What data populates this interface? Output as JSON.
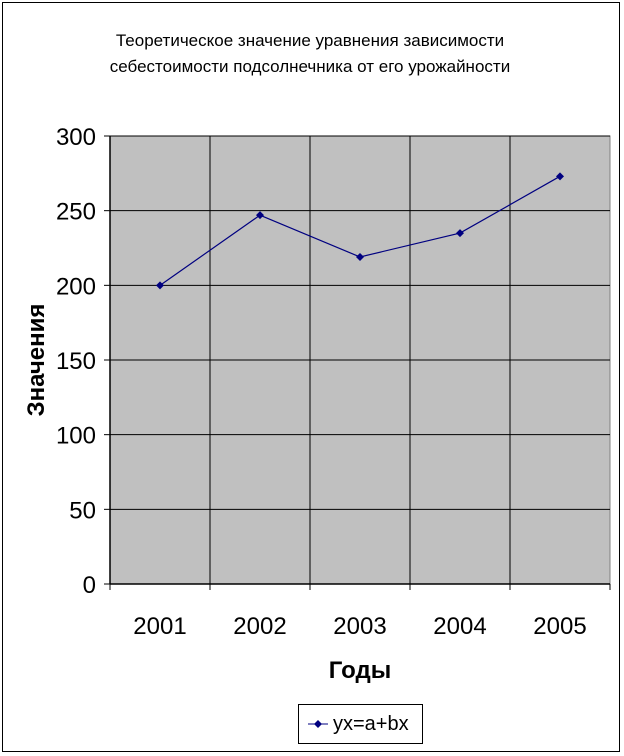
{
  "chart_data": {
    "type": "line",
    "title_lines": [
      "Теоретическое значение уравнения зависимости",
      "себестоимости подсолнечника от его урожайности"
    ],
    "xlabel": "Годы",
    "ylabel": "Значения",
    "categories": [
      "2001",
      "2002",
      "2003",
      "2004",
      "2005"
    ],
    "ylim": [
      0,
      300
    ],
    "yticks": [
      0,
      50,
      100,
      150,
      200,
      250,
      300
    ],
    "series": [
      {
        "name": "yx=a+bx",
        "values": [
          200,
          247,
          219,
          235,
          273
        ],
        "color": "#000080"
      }
    ],
    "plot_background": "#c0c0c0",
    "grid": true,
    "legend_position": "bottom"
  }
}
